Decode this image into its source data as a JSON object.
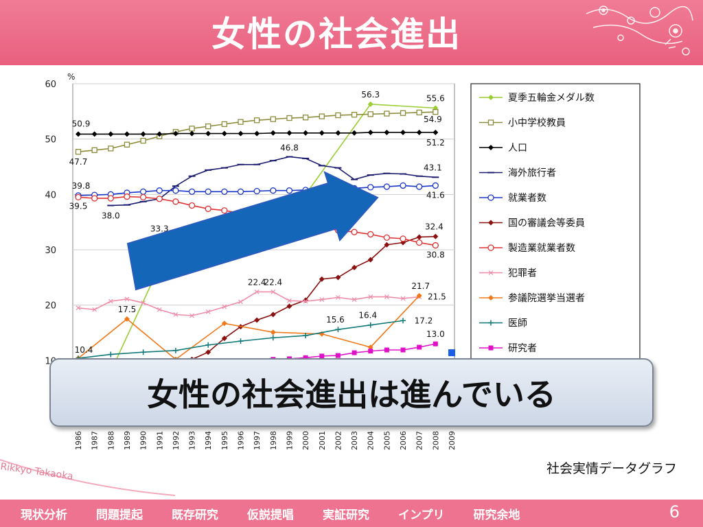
{
  "header": {
    "title": "女性の社会進出"
  },
  "callout": {
    "text": "女性の社会進出は進んでいる"
  },
  "source": "社会実情データグラフ",
  "brand": "Rikkyo Takaoka",
  "footer": {
    "nav": [
      "現状分析",
      "問題提起",
      "既存研究",
      "仮説提唱",
      "実証研究",
      "インプリ",
      "研究余地"
    ],
    "page": "6"
  },
  "colors": {
    "header": "#e9607f",
    "footer": "#ee7390",
    "arrow": "#1466b8"
  },
  "chart_data": {
    "type": "line",
    "unit": "%",
    "ylim": [
      0,
      60
    ],
    "yticks": [
      10,
      20,
      30,
      40,
      50,
      60
    ],
    "years": [
      "1986",
      "1987",
      "1988",
      "1989",
      "1990",
      "1991",
      "1992",
      "1993",
      "1994",
      "1995",
      "1996",
      "1997",
      "1998",
      "1999",
      "2000",
      "2001",
      "2002",
      "2003",
      "2004",
      "2005",
      "2006",
      "2007",
      "2008",
      "2009"
    ],
    "series": [
      {
        "name": "夏季五輪金メダル数",
        "color": "#9acd32",
        "marker": "diamond",
        "points": [
          [
            1988,
            8
          ],
          [
            1992,
            33.3
          ],
          [
            1996,
            37
          ],
          [
            2000,
            40
          ],
          [
            2004,
            56.3
          ],
          [
            2008,
            55.6
          ]
        ]
      },
      {
        "name": "小中学校教員",
        "color": "#8b8b3a",
        "marker": "square-open",
        "points": [
          [
            1986,
            47.7
          ],
          [
            1987,
            48
          ],
          [
            1988,
            48.3
          ],
          [
            1989,
            49
          ],
          [
            1990,
            49.7
          ],
          [
            1991,
            50.5
          ],
          [
            1992,
            51.3
          ],
          [
            1993,
            51.9
          ],
          [
            1994,
            52.3
          ],
          [
            1995,
            52.7
          ],
          [
            1996,
            53.1
          ],
          [
            1997,
            53.4
          ],
          [
            1998,
            53.6
          ],
          [
            1999,
            53.8
          ],
          [
            2000,
            53.9
          ],
          [
            2001,
            54.1
          ],
          [
            2002,
            54.3
          ],
          [
            2003,
            54.4
          ],
          [
            2004,
            54.5
          ],
          [
            2005,
            54.6
          ],
          [
            2006,
            54.7
          ],
          [
            2007,
            54.8
          ],
          [
            2008,
            54.9
          ]
        ]
      },
      {
        "name": "人口",
        "color": "#000000",
        "marker": "diamond",
        "points": [
          [
            1986,
            50.9
          ],
          [
            1987,
            50.9
          ],
          [
            1988,
            50.9
          ],
          [
            1989,
            50.9
          ],
          [
            1990,
            50.9
          ],
          [
            1991,
            50.9
          ],
          [
            1992,
            51
          ],
          [
            1993,
            51
          ],
          [
            1994,
            51
          ],
          [
            1995,
            51
          ],
          [
            1996,
            51
          ],
          [
            1997,
            51
          ],
          [
            1998,
            51.1
          ],
          [
            1999,
            51.1
          ],
          [
            2000,
            51.1
          ],
          [
            2001,
            51.1
          ],
          [
            2002,
            51.1
          ],
          [
            2003,
            51.1
          ],
          [
            2004,
            51.2
          ],
          [
            2005,
            51.2
          ],
          [
            2006,
            51.2
          ],
          [
            2007,
            51.2
          ],
          [
            2008,
            51.2
          ]
        ]
      },
      {
        "name": "海外旅行者",
        "color": "#1a1a6e",
        "marker": "dash",
        "points": [
          [
            1988,
            38
          ],
          [
            1989,
            38.1
          ],
          [
            1990,
            38.7
          ],
          [
            1991,
            39.2
          ],
          [
            1992,
            41.5
          ],
          [
            1993,
            43.3
          ],
          [
            1994,
            44.4
          ],
          [
            1995,
            44.8
          ],
          [
            1996,
            45.4
          ],
          [
            1997,
            45.4
          ],
          [
            1998,
            46.1
          ],
          [
            1999,
            46.8
          ],
          [
            2000,
            46.5
          ],
          [
            2001,
            45.2
          ],
          [
            2002,
            44.8
          ],
          [
            2003,
            42.7
          ],
          [
            2004,
            43.5
          ],
          [
            2005,
            43.8
          ],
          [
            2006,
            43.7
          ],
          [
            2007,
            43.3
          ],
          [
            2008,
            43.1
          ]
        ]
      },
      {
        "name": "就業者数",
        "color": "#1a35c8",
        "marker": "circle-open",
        "points": [
          [
            1986,
            39.8
          ],
          [
            1987,
            39.9
          ],
          [
            1988,
            40
          ],
          [
            1989,
            40.3
          ],
          [
            1990,
            40.5
          ],
          [
            1991,
            40.7
          ],
          [
            1992,
            40.7
          ],
          [
            1993,
            40.5
          ],
          [
            1994,
            40.5
          ],
          [
            1995,
            40.5
          ],
          [
            1996,
            40.5
          ],
          [
            1997,
            40.6
          ],
          [
            1998,
            40.7
          ],
          [
            1999,
            40.7
          ],
          [
            2000,
            40.8
          ],
          [
            2001,
            41
          ],
          [
            2002,
            41.1
          ],
          [
            2003,
            41.1
          ],
          [
            2004,
            41.3
          ],
          [
            2005,
            41.4
          ],
          [
            2006,
            41.6
          ],
          [
            2007,
            41.4
          ],
          [
            2008,
            41.6
          ]
        ]
      },
      {
        "name": "国の審議会等委員",
        "color": "#8b1010",
        "marker": "diamond",
        "points": [
          [
            1992,
            9.8
          ],
          [
            1993,
            10.2
          ],
          [
            1994,
            11.5
          ],
          [
            1995,
            14
          ],
          [
            1996,
            16.1
          ],
          [
            1997,
            17.3
          ],
          [
            1998,
            18.3
          ],
          [
            1999,
            19.8
          ],
          [
            2000,
            20.9
          ],
          [
            2001,
            24.7
          ],
          [
            2002,
            25
          ],
          [
            2003,
            26.8
          ],
          [
            2004,
            28.2
          ],
          [
            2005,
            30.9
          ],
          [
            2006,
            31.3
          ],
          [
            2007,
            32.3
          ],
          [
            2008,
            32.4
          ]
        ]
      },
      {
        "name": "製造業就業者数",
        "color": "#e03030",
        "marker": "circle-open",
        "points": [
          [
            1986,
            39.5
          ],
          [
            1987,
            39.3
          ],
          [
            1988,
            39.3
          ],
          [
            1989,
            39.6
          ],
          [
            1990,
            39.5
          ],
          [
            1991,
            39.2
          ],
          [
            1992,
            38.7
          ],
          [
            1993,
            38
          ],
          [
            1994,
            37.4
          ],
          [
            1995,
            37.1
          ],
          [
            1996,
            36.6
          ],
          [
            2002,
            33.5
          ],
          [
            2003,
            33.2
          ],
          [
            2004,
            32.8
          ],
          [
            2005,
            32.2
          ],
          [
            2006,
            32
          ],
          [
            2007,
            31.3
          ],
          [
            2008,
            30.8
          ]
        ]
      },
      {
        "name": "犯罪者",
        "color": "#f08ca8",
        "marker": "x",
        "points": [
          [
            1986,
            19.5
          ],
          [
            1987,
            19.2
          ],
          [
            1988,
            20.7
          ],
          [
            1989,
            21.1
          ],
          [
            1990,
            20.4
          ],
          [
            1991,
            19.2
          ],
          [
            1992,
            18.3
          ],
          [
            1993,
            18.1
          ],
          [
            1994,
            18.8
          ],
          [
            1995,
            19.7
          ],
          [
            1996,
            20.6
          ],
          [
            1997,
            22.4
          ],
          [
            1998,
            22.4
          ],
          [
            1999,
            20.8
          ],
          [
            2000,
            20.7
          ],
          [
            2001,
            21
          ],
          [
            2002,
            21.4
          ],
          [
            2003,
            21
          ],
          [
            2004,
            21.5
          ],
          [
            2005,
            21.5
          ],
          [
            2006,
            21.2
          ],
          [
            2007,
            21.5
          ]
        ]
      },
      {
        "name": "参議院選挙当選者",
        "color": "#f07818",
        "marker": "diamond",
        "points": [
          [
            1986,
            10.4
          ],
          [
            1989,
            17.5
          ],
          [
            1992,
            10.2
          ],
          [
            1995,
            16.7
          ],
          [
            1998,
            15.1
          ],
          [
            2001,
            14.8
          ],
          [
            2004,
            12.4
          ],
          [
            2007,
            21.7
          ]
        ]
      },
      {
        "name": "医師",
        "color": "#107878",
        "marker": "plus",
        "points": [
          [
            1986,
            10.4
          ],
          [
            1988,
            11.1
          ],
          [
            1990,
            11.5
          ],
          [
            1992,
            11.8
          ],
          [
            1994,
            12.8
          ],
          [
            1996,
            13.5
          ],
          [
            1998,
            14.1
          ],
          [
            2000,
            14.5
          ],
          [
            2002,
            15.6
          ],
          [
            2004,
            16.4
          ],
          [
            2006,
            17.2
          ]
        ]
      },
      {
        "name": "研究者",
        "color": "#e010c8",
        "marker": "square",
        "points": [
          [
            1998,
            10.2
          ],
          [
            1999,
            10.3
          ],
          [
            2000,
            10.5
          ],
          [
            2001,
            10.8
          ],
          [
            2002,
            10.9
          ],
          [
            2003,
            11.4
          ],
          [
            2004,
            11.7
          ],
          [
            2005,
            11.9
          ],
          [
            2006,
            11.9
          ],
          [
            2007,
            12.4
          ],
          [
            2008,
            13
          ]
        ]
      }
    ],
    "blue_marker": {
      "x": 2009,
      "y": 11.4,
      "color": "#1a5fe8"
    },
    "labels": [
      {
        "x": 2004,
        "y": 56.3,
        "text": "56.3",
        "dx": 0,
        "dy": -10
      },
      {
        "x": 2008,
        "y": 55.6,
        "text": "55.6",
        "dx": 0,
        "dy": -10
      },
      {
        "x": 2008,
        "y": 54.9,
        "text": "54.9",
        "dx": -4,
        "dy": 15
      },
      {
        "x": 1986,
        "y": 50.9,
        "text": "50.9",
        "dx": 4,
        "dy": -11
      },
      {
        "x": 2008,
        "y": 51.2,
        "text": "51.2",
        "dx": 0,
        "dy": 19
      },
      {
        "x": 1986,
        "y": 47.7,
        "text": "47.7",
        "dx": 0,
        "dy": 19
      },
      {
        "x": 1999,
        "y": 46.8,
        "text": "46.8",
        "dx": 0,
        "dy": -9
      },
      {
        "x": 2008,
        "y": 43.1,
        "text": "43.1",
        "dx": -4,
        "dy": -10
      },
      {
        "x": 1986,
        "y": 39.8,
        "text": "39.8",
        "dx": 4,
        "dy": -10
      },
      {
        "x": 2008,
        "y": 41.6,
        "text": "41.6",
        "dx": 0,
        "dy": 18
      },
      {
        "x": 1986,
        "y": 39.5,
        "text": "39.5",
        "dx": 0,
        "dy": 17
      },
      {
        "x": 1988,
        "y": 38,
        "text": "38.0",
        "dx": 0,
        "dy": 19
      },
      {
        "x": 1991,
        "y": 33.3,
        "text": "33.3",
        "dx": 0,
        "dy": 0
      },
      {
        "x": 2008,
        "y": 32.4,
        "text": "32.4",
        "dx": -2,
        "dy": -10
      },
      {
        "x": 2008,
        "y": 30.8,
        "text": "30.8",
        "dx": 0,
        "dy": 18
      },
      {
        "x": 1997,
        "y": 22.4,
        "text": "22.4",
        "dx": 0,
        "dy": -10
      },
      {
        "x": 1998,
        "y": 22.4,
        "text": "22.4",
        "dx": 0,
        "dy": -10
      },
      {
        "x": 2007,
        "y": 21.7,
        "text": "21.7",
        "dx": 2,
        "dy": -10
      },
      {
        "x": 2008,
        "y": 21.5,
        "text": "21.5",
        "dx": 2,
        "dy": 4
      },
      {
        "x": 1989,
        "y": 17.5,
        "text": "17.5",
        "dx": 0,
        "dy": -10
      },
      {
        "x": 2002,
        "y": 15.6,
        "text": "15.6",
        "dx": -4,
        "dy": -10
      },
      {
        "x": 2004,
        "y": 16.4,
        "text": "16.4",
        "dx": -4,
        "dy": -10
      },
      {
        "x": 2006,
        "y": 17.2,
        "text": "17.2",
        "dx": 30,
        "dy": 4
      },
      {
        "x": 2008,
        "y": 13,
        "text": "13.0",
        "dx": 0,
        "dy": -10
      },
      {
        "x": 1986,
        "y": 10.4,
        "text": "10.4",
        "dx": 8,
        "dy": -8
      }
    ]
  }
}
